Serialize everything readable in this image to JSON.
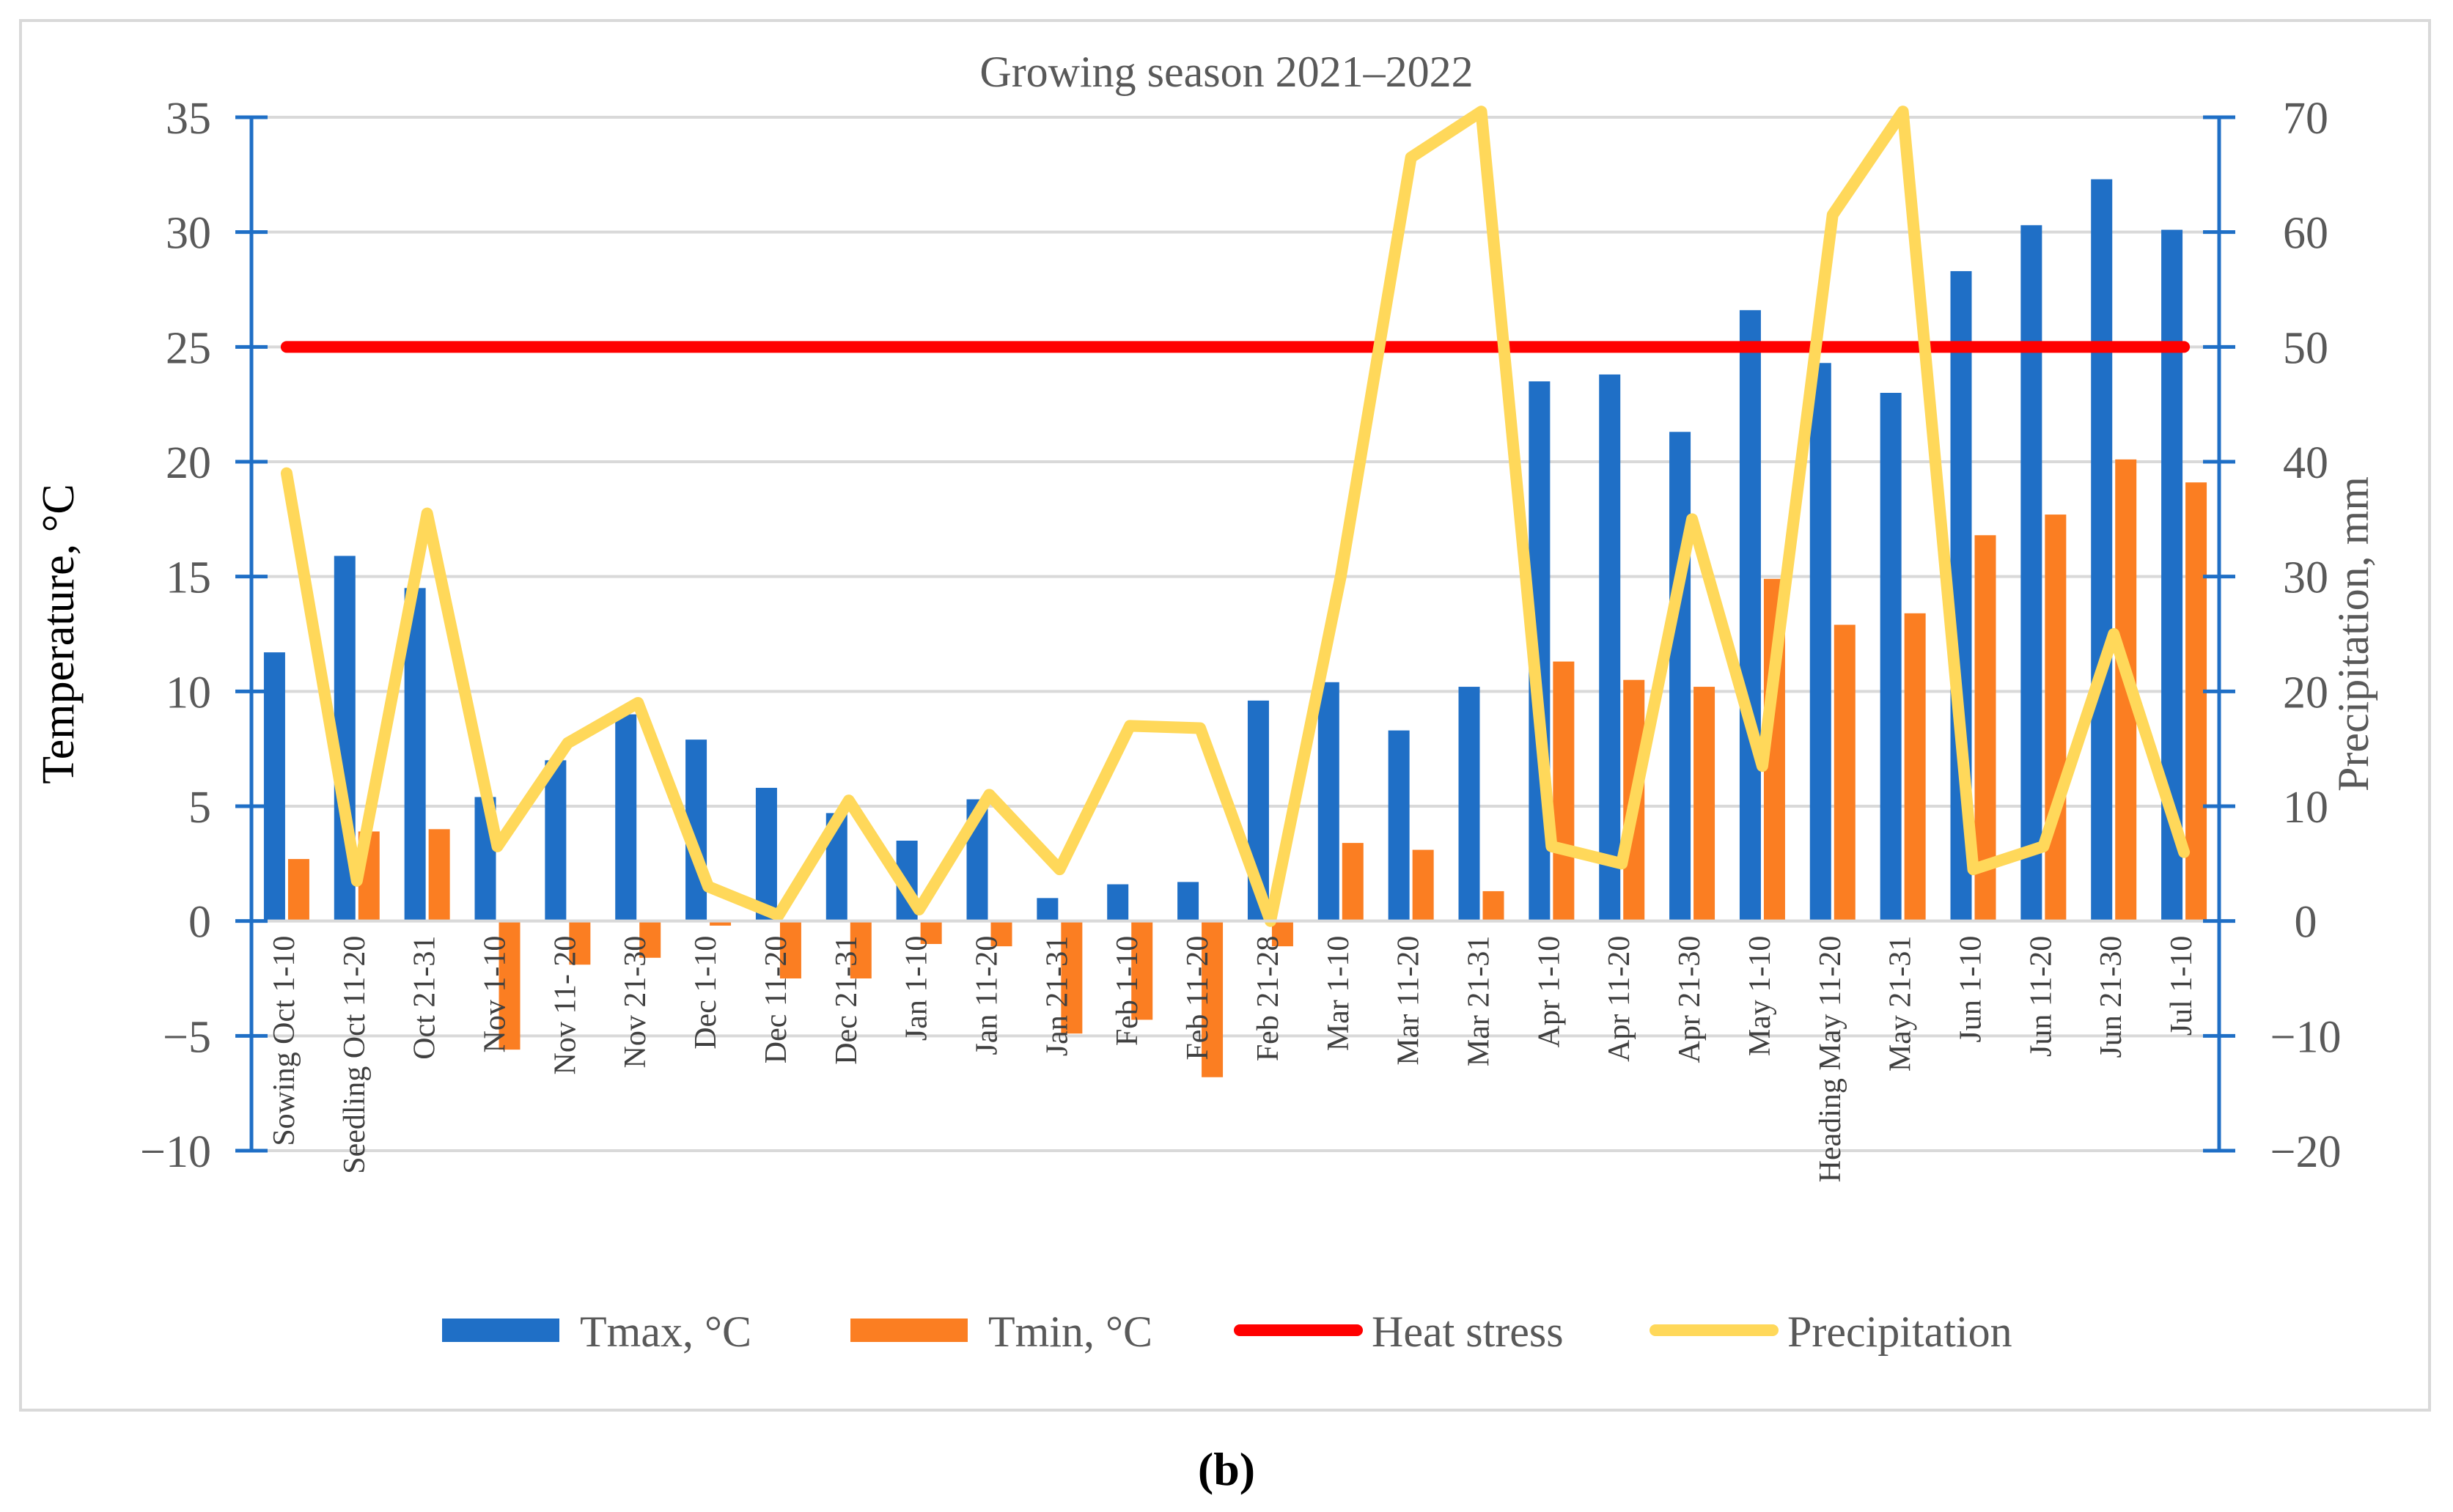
{
  "chart_data": {
    "type": "bar",
    "title": "Growing season 2021–2022",
    "ylabel": "Temperature, °C",
    "y2label": "Precipitation, mm",
    "ylim": [
      -10,
      35
    ],
    "y2lim": [
      -20,
      70
    ],
    "yticks": [
      35,
      30,
      25,
      20,
      15,
      10,
      5,
      0,
      -5,
      -10
    ],
    "y2ticks": [
      70,
      60,
      50,
      40,
      30,
      20,
      10,
      0,
      -10,
      -20
    ],
    "categories": [
      "Sowing Oct 1-10",
      "Seedling Oct 11-20",
      "Oct 21-31",
      "Nov 1-10",
      "Nov 11- 20",
      "Nov 21-30",
      "Dec 1-10",
      "Dec 11-20",
      "Dec 21-31",
      "Jan 1-10",
      "Jan 11-20",
      "Jan 21-31",
      "Feb 1-10",
      "Feb 11-20",
      "Feb 21-28",
      "Mar 1-10",
      "Mar 11-20",
      "Mar 21-31",
      "Apr 1-10",
      "Apr 11-20",
      "Apr 21-30",
      "May 1-10",
      "Heading May 11-20",
      "May 21-31",
      "Jun 1-10",
      "Jun 11-20",
      "Jun 21-30",
      "Jul 1-10"
    ],
    "series": [
      {
        "name": "Tmax, °C",
        "kind": "bar",
        "axis": "left",
        "color": "#1f6fc6",
        "values": [
          11.7,
          15.9,
          14.5,
          5.4,
          7.0,
          9.0,
          7.9,
          5.8,
          4.7,
          3.5,
          5.3,
          1.0,
          1.6,
          1.7,
          9.6,
          10.4,
          8.3,
          10.2,
          23.5,
          23.8,
          21.3,
          26.6,
          24.3,
          23.0,
          28.3,
          30.3,
          32.3,
          30.1
        ]
      },
      {
        "name": "Tmin, °C",
        "kind": "bar",
        "axis": "left",
        "color": "#fb7e22",
        "values": [
          2.7,
          3.9,
          4.0,
          -5.6,
          -1.9,
          -1.6,
          -0.2,
          -2.5,
          -2.5,
          -1.0,
          -1.1,
          -4.9,
          -4.3,
          -6.8,
          -1.1,
          3.4,
          3.1,
          1.3,
          11.3,
          10.5,
          10.2,
          14.9,
          12.9,
          13.4,
          16.8,
          17.7,
          20.1,
          19.1
        ]
      },
      {
        "name": "Heat stress",
        "kind": "line",
        "axis": "left",
        "color": "#ff0000",
        "values": [
          25,
          25,
          25,
          25,
          25,
          25,
          25,
          25,
          25,
          25,
          25,
          25,
          25,
          25,
          25,
          25,
          25,
          25,
          25,
          25,
          25,
          25,
          25,
          25,
          25,
          25,
          25,
          25
        ]
      },
      {
        "name": "Precipitation",
        "kind": "line",
        "axis": "right",
        "color": "#ffd85a",
        "values": [
          39,
          3.5,
          35.5,
          6.5,
          15.5,
          19,
          3,
          0.5,
          10.5,
          1,
          11,
          4.5,
          17,
          16.8,
          0,
          30,
          66.5,
          70.5,
          6.5,
          5,
          35,
          13.5,
          61.5,
          70.5,
          4.5,
          6.5,
          25,
          6
        ]
      }
    ],
    "legend_position": "bottom",
    "grid": true
  },
  "panel_label": "(b)"
}
